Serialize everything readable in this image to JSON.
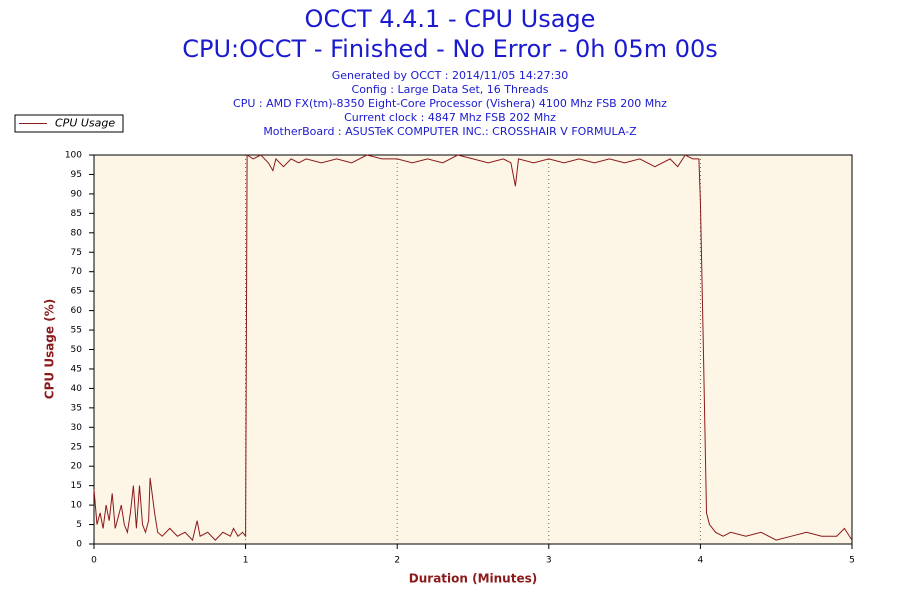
{
  "chart_data": {
    "type": "line",
    "title": "OCCT 4.4.1 - CPU Usage",
    "subtitle": "CPU:OCCT - Finished - No Error - 0h 05m 00s",
    "header_lines": [
      "Generated by OCCT : 2014/11/05 14:27:30",
      "Config : Large Data Set, 16 Threads",
      "CPU : AMD FX(tm)-8350 Eight-Core Processor (Vishera) 4100 Mhz FSB 200 Mhz",
      "Current clock : 4847 Mhz FSB 202 Mhz",
      "MotherBoard : ASUSTeK COMPUTER INC.: CROSSHAIR V FORMULA-Z"
    ],
    "x_label": "Duration (Minutes)",
    "y_label": "CPU Usage (%)",
    "x": [
      0,
      0.02,
      0.04,
      0.06,
      0.08,
      0.1,
      0.12,
      0.14,
      0.16,
      0.18,
      0.2,
      0.22,
      0.24,
      0.26,
      0.28,
      0.3,
      0.32,
      0.34,
      0.36,
      0.37,
      0.4,
      0.42,
      0.45,
      0.5,
      0.55,
      0.6,
      0.65,
      0.68,
      0.7,
      0.75,
      0.8,
      0.85,
      0.9,
      0.92,
      0.95,
      0.98,
      1.0,
      1.01,
      1.05,
      1.1,
      1.15,
      1.18,
      1.2,
      1.25,
      1.3,
      1.35,
      1.4,
      1.5,
      1.6,
      1.7,
      1.8,
      1.9,
      2.0,
      2.1,
      2.2,
      2.3,
      2.4,
      2.5,
      2.6,
      2.7,
      2.75,
      2.78,
      2.8,
      2.9,
      3.0,
      3.1,
      3.2,
      3.3,
      3.4,
      3.5,
      3.6,
      3.7,
      3.8,
      3.85,
      3.9,
      3.95,
      3.99,
      4.0,
      4.02,
      4.04,
      4.06,
      4.1,
      4.15,
      4.2,
      4.3,
      4.4,
      4.5,
      4.6,
      4.7,
      4.8,
      4.9,
      4.95,
      5.0
    ],
    "series": [
      {
        "name": "CPU Usage",
        "color": "#8b1a1a",
        "values": [
          14,
          5,
          8,
          4,
          10,
          6,
          13,
          4,
          7,
          10,
          5,
          3,
          8,
          15,
          4,
          15,
          5,
          3,
          6,
          17,
          8,
          3,
          2,
          4,
          2,
          3,
          1,
          6,
          2,
          3,
          1,
          3,
          2,
          4,
          2,
          3,
          2,
          100,
          99,
          100,
          98,
          96,
          99,
          97,
          99,
          98,
          99,
          98,
          99,
          98,
          100,
          99,
          99,
          98,
          99,
          98,
          100,
          99,
          98,
          99,
          98,
          92,
          99,
          98,
          99,
          98,
          99,
          98,
          99,
          98,
          99,
          97,
          99,
          97,
          100,
          99,
          99,
          88,
          50,
          8,
          5,
          3,
          2,
          3,
          2,
          3,
          1,
          2,
          3,
          2,
          2,
          4,
          1
        ]
      }
    ],
    "xlim": [
      0,
      5
    ],
    "xticks": [
      0,
      1,
      2,
      3,
      4,
      5
    ],
    "ylim": [
      0,
      100
    ],
    "yticks": [
      0,
      5,
      10,
      15,
      20,
      25,
      30,
      35,
      40,
      45,
      50,
      55,
      60,
      65,
      70,
      75,
      80,
      85,
      90,
      95,
      100
    ],
    "grid": "x",
    "legend": "top-left"
  }
}
